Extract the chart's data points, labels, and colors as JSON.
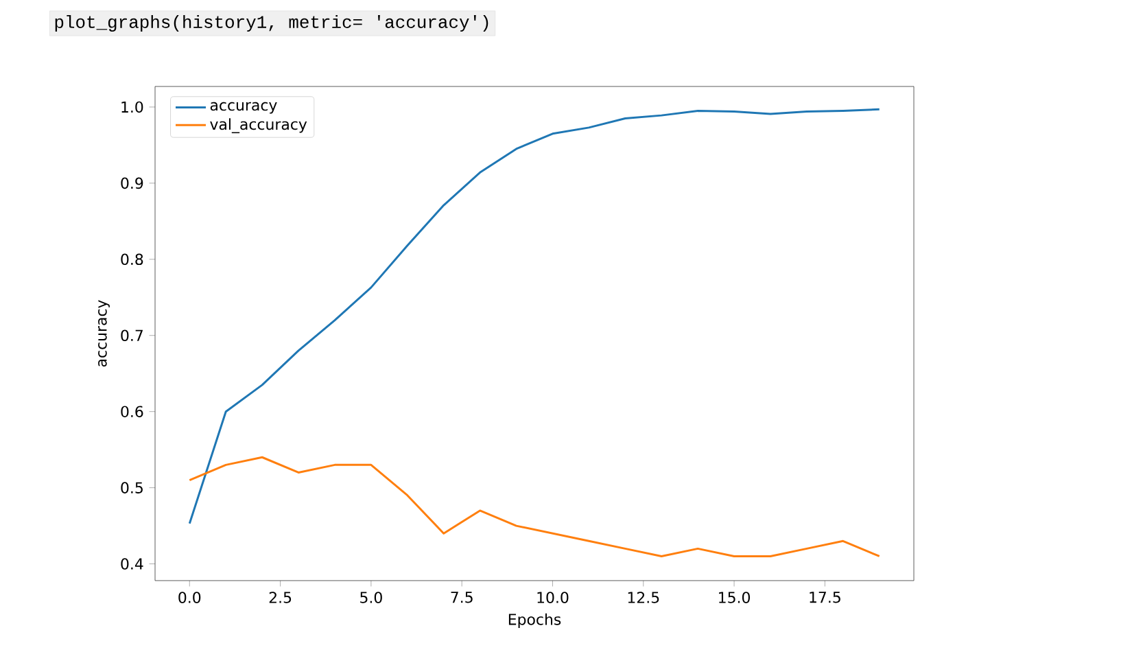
{
  "chart_data": {
    "type": "line",
    "xlabel": "Epochs",
    "ylabel": "accuracy",
    "annotations": [
      "plot_graphs(history1, metric= 'accuracy')"
    ],
    "x": [
      0,
      1,
      2,
      3,
      4,
      5,
      6,
      7,
      8,
      9,
      10,
      11,
      12,
      13,
      14,
      15,
      16,
      17,
      18,
      19
    ],
    "series": [
      {
        "name": "accuracy",
        "color": "#1f77b4",
        "values": [
          0.453,
          0.6,
          0.635,
          0.68,
          0.72,
          0.763,
          0.818,
          0.871,
          0.914,
          0.945,
          0.965,
          0.973,
          0.985,
          0.989,
          0.995,
          0.994,
          0.991,
          0.994,
          0.995,
          0.997
        ]
      },
      {
        "name": "val_accuracy",
        "color": "#ff7f0e",
        "values": [
          0.51,
          0.53,
          0.54,
          0.52,
          0.53,
          0.53,
          0.49,
          0.44,
          0.47,
          0.45,
          0.44,
          0.43,
          0.42,
          0.41,
          0.42,
          0.41,
          0.41,
          0.42,
          0.43,
          0.41
        ]
      }
    ],
    "xlim": [
      -0.95,
      19.95
    ],
    "ylim": [
      0.378,
      1.027
    ],
    "xticks": [
      {
        "value": 0,
        "label": "0.0"
      },
      {
        "value": 2.5,
        "label": "2.5"
      },
      {
        "value": 5,
        "label": "5.0"
      },
      {
        "value": 7.5,
        "label": "7.5"
      },
      {
        "value": 10,
        "label": "10.0"
      },
      {
        "value": 12.5,
        "label": "12.5"
      },
      {
        "value": 15,
        "label": "15.0"
      },
      {
        "value": 17.5,
        "label": "17.5"
      }
    ],
    "yticks": [
      0.4,
      0.5,
      0.6,
      0.7,
      0.8,
      0.9,
      {
        "value": 1,
        "label": "1.0"
      }
    ],
    "legend": "top left",
    "grid": false,
    "marker": "none",
    "line_style": "solid"
  }
}
